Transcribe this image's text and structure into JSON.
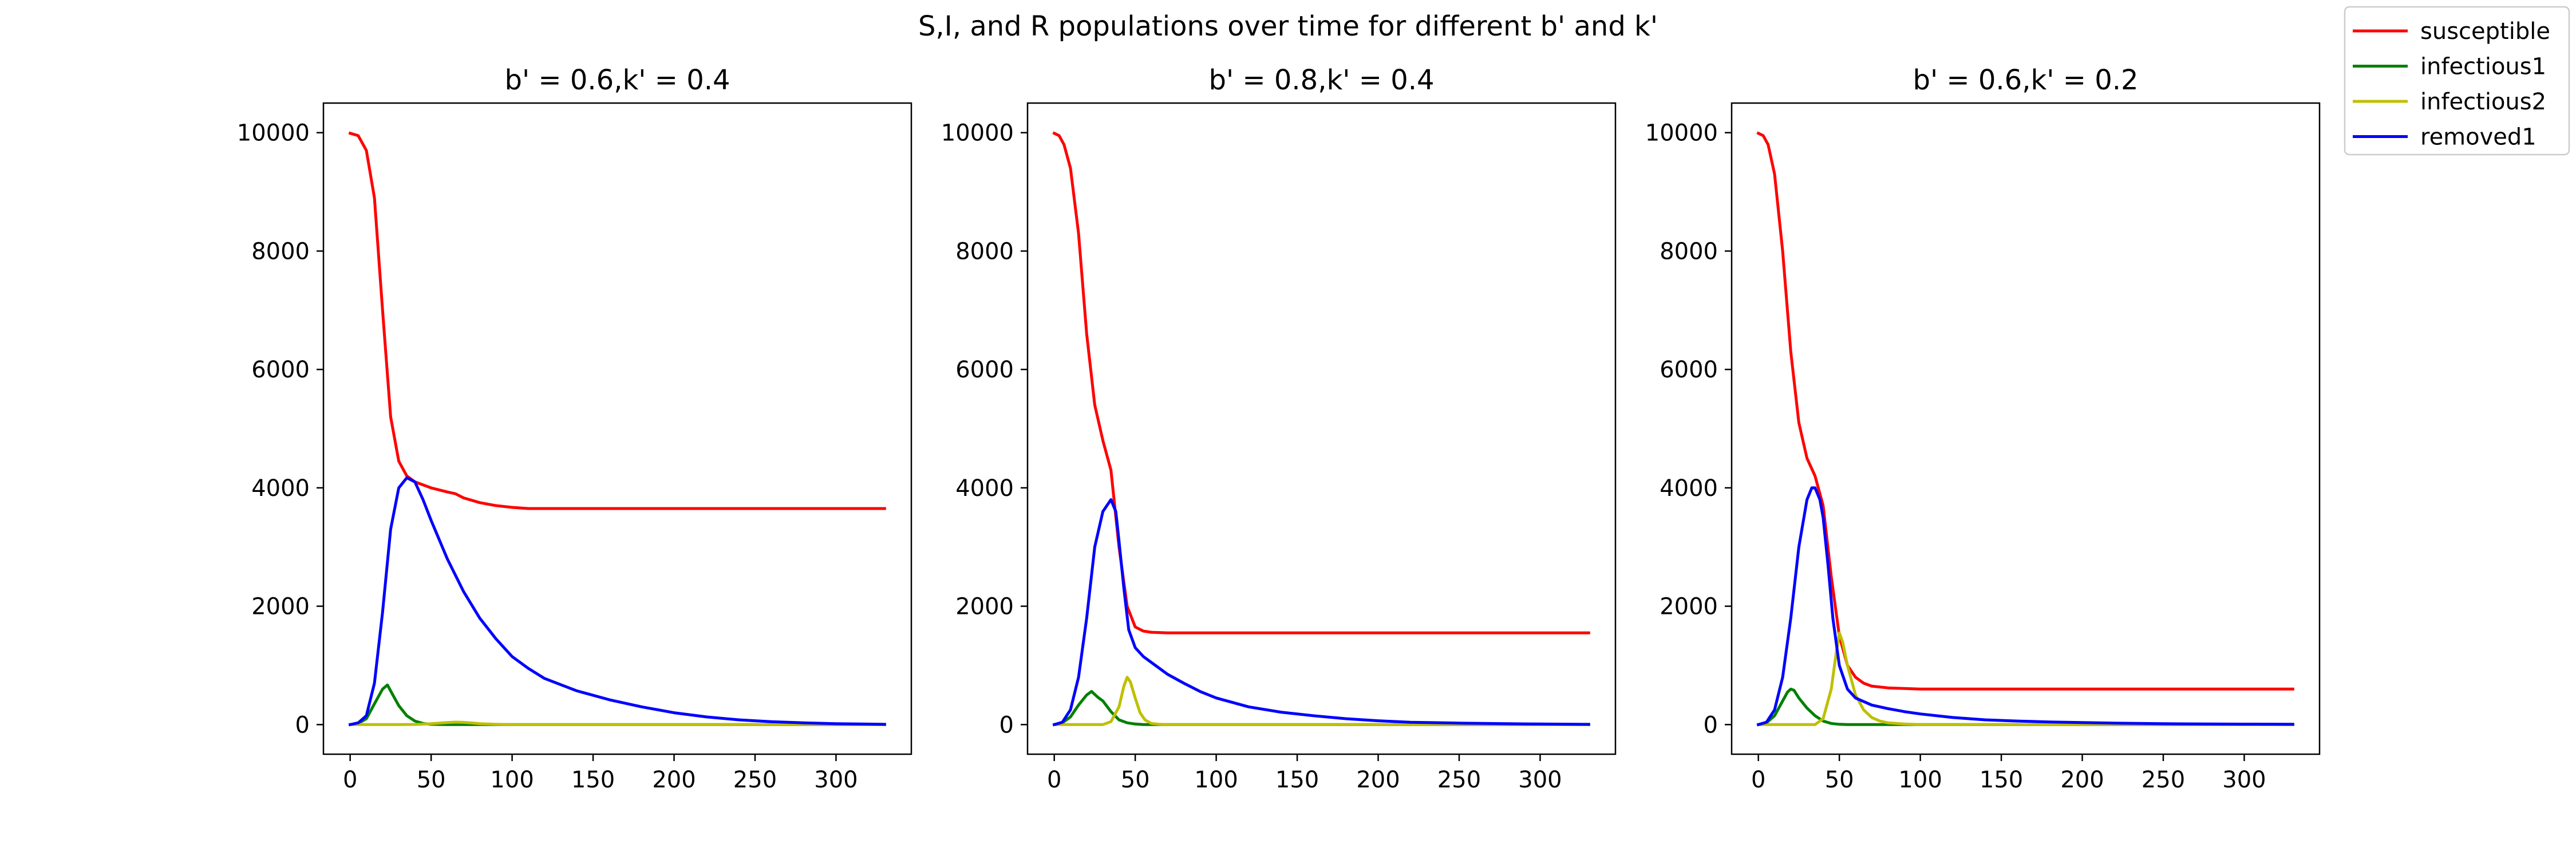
{
  "figure": {
    "suptitle": "S,I, and R populations over time for different b' and k'"
  },
  "legend": {
    "placement": "top-right",
    "entries": [
      {
        "label": "susceptible",
        "color": "#ff0000"
      },
      {
        "label": "infectious1",
        "color": "#008000"
      },
      {
        "label": "infectious2",
        "color": "#bfbf00"
      },
      {
        "label": "removed1",
        "color": "#0000ff"
      }
    ]
  },
  "chart_data": [
    {
      "type": "line",
      "title": "b' = 0.6,k' = 0.4",
      "xlabel": "",
      "ylabel": "",
      "xlim": [
        -16.5,
        346.5
      ],
      "ylim": [
        -500,
        10500
      ],
      "xticks": [
        0,
        50,
        100,
        150,
        200,
        250,
        300
      ],
      "yticks": [
        0,
        2000,
        4000,
        6000,
        8000,
        10000
      ],
      "grid": false,
      "series": [
        {
          "name": "susceptible",
          "color": "#ff0000",
          "x": [
            0,
            5,
            10,
            15,
            20,
            25,
            30,
            35,
            40,
            50,
            60,
            65,
            70,
            80,
            90,
            100,
            110,
            150,
            200,
            250,
            300,
            330
          ],
          "y": [
            9990,
            9950,
            9700,
            8900,
            7000,
            5200,
            4450,
            4200,
            4100,
            4000,
            3930,
            3900,
            3830,
            3750,
            3700,
            3670,
            3650,
            3650,
            3650,
            3650,
            3650,
            3650
          ]
        },
        {
          "name": "infectious1",
          "color": "#008000",
          "x": [
            0,
            5,
            10,
            15,
            20,
            23,
            26,
            30,
            35,
            40,
            45,
            50,
            60,
            80,
            100,
            330
          ],
          "y": [
            0,
            20,
            100,
            350,
            600,
            670,
            520,
            320,
            150,
            60,
            20,
            5,
            0,
            0,
            0,
            0
          ]
        },
        {
          "name": "infectious2",
          "color": "#bfbf00",
          "x": [
            0,
            30,
            40,
            45,
            50,
            55,
            60,
            65,
            70,
            75,
            80,
            90,
            100,
            330
          ],
          "y": [
            0,
            0,
            3,
            8,
            15,
            25,
            35,
            42,
            38,
            28,
            15,
            5,
            0,
            0
          ]
        },
        {
          "name": "removed1",
          "color": "#0000ff",
          "x": [
            0,
            5,
            10,
            15,
            20,
            25,
            30,
            35,
            40,
            45,
            50,
            60,
            70,
            80,
            90,
            100,
            110,
            120,
            140,
            160,
            180,
            200,
            220,
            240,
            260,
            280,
            300,
            330
          ],
          "y": [
            0,
            30,
            150,
            700,
            1900,
            3300,
            4000,
            4170,
            4100,
            3800,
            3450,
            2800,
            2250,
            1800,
            1450,
            1150,
            950,
            780,
            570,
            420,
            300,
            200,
            130,
            80,
            50,
            30,
            15,
            5
          ]
        }
      ]
    },
    {
      "type": "line",
      "title": "b' = 0.8,k' = 0.4",
      "xlabel": "",
      "ylabel": "",
      "xlim": [
        -16.5,
        346.5
      ],
      "ylim": [
        -500,
        10500
      ],
      "xticks": [
        0,
        50,
        100,
        150,
        200,
        250,
        300
      ],
      "yticks": [
        0,
        2000,
        4000,
        6000,
        8000,
        10000
      ],
      "grid": false,
      "series": [
        {
          "name": "susceptible",
          "color": "#ff0000",
          "x": [
            0,
            3,
            6,
            10,
            15,
            20,
            25,
            30,
            35,
            40,
            45,
            50,
            55,
            60,
            70,
            80,
            100,
            150,
            200,
            250,
            300,
            330
          ],
          "y": [
            9990,
            9950,
            9800,
            9400,
            8300,
            6600,
            5400,
            4800,
            4300,
            3000,
            2000,
            1650,
            1580,
            1560,
            1550,
            1550,
            1550,
            1550,
            1550,
            1550,
            1550,
            1550
          ]
        },
        {
          "name": "infectious1",
          "color": "#008000",
          "x": [
            0,
            5,
            10,
            15,
            20,
            23,
            27,
            30,
            35,
            40,
            45,
            50,
            55,
            60,
            330
          ],
          "y": [
            0,
            30,
            130,
            330,
            500,
            560,
            460,
            400,
            220,
            80,
            30,
            10,
            0,
            0,
            0
          ]
        },
        {
          "name": "infectious2",
          "color": "#bfbf00",
          "x": [
            0,
            30,
            35,
            40,
            43,
            45,
            47,
            50,
            53,
            56,
            60,
            65,
            70,
            330
          ],
          "y": [
            0,
            0,
            50,
            300,
            650,
            800,
            720,
            450,
            200,
            80,
            20,
            5,
            0,
            0
          ]
        },
        {
          "name": "removed1",
          "color": "#0000ff",
          "x": [
            0,
            5,
            10,
            15,
            20,
            25,
            30,
            35,
            38,
            40,
            43,
            46,
            50,
            55,
            60,
            70,
            80,
            90,
            100,
            120,
            140,
            160,
            180,
            200,
            220,
            250,
            280,
            300,
            330
          ],
          "y": [
            0,
            40,
            250,
            800,
            1800,
            3000,
            3600,
            3800,
            3600,
            3100,
            2300,
            1600,
            1300,
            1150,
            1050,
            850,
            700,
            560,
            450,
            300,
            210,
            150,
            100,
            65,
            40,
            25,
            15,
            10,
            5
          ]
        }
      ]
    },
    {
      "type": "line",
      "title": "b' = 0.6,k' = 0.2",
      "xlabel": "",
      "ylabel": "",
      "xlim": [
        -16.5,
        346.5
      ],
      "ylim": [
        -500,
        10500
      ],
      "xticks": [
        0,
        50,
        100,
        150,
        200,
        250,
        300
      ],
      "yticks": [
        0,
        2000,
        4000,
        6000,
        8000,
        10000
      ],
      "grid": false,
      "series": [
        {
          "name": "susceptible",
          "color": "#ff0000",
          "x": [
            0,
            3,
            6,
            10,
            15,
            20,
            25,
            30,
            35,
            40,
            45,
            50,
            55,
            60,
            65,
            70,
            80,
            90,
            100,
            150,
            200,
            250,
            300,
            330
          ],
          "y": [
            9990,
            9950,
            9800,
            9300,
            8000,
            6300,
            5100,
            4500,
            4200,
            3700,
            2500,
            1500,
            1000,
            800,
            700,
            650,
            620,
            610,
            600,
            600,
            600,
            600,
            600,
            600
          ]
        },
        {
          "name": "infectious1",
          "color": "#008000",
          "x": [
            0,
            5,
            10,
            15,
            18,
            20,
            22,
            25,
            30,
            35,
            40,
            45,
            50,
            55,
            330
          ],
          "y": [
            0,
            30,
            150,
            400,
            550,
            600,
            580,
            450,
            280,
            150,
            60,
            20,
            5,
            0,
            0
          ]
        },
        {
          "name": "infectious2",
          "color": "#bfbf00",
          "x": [
            0,
            35,
            40,
            45,
            48,
            50,
            52,
            55,
            60,
            65,
            70,
            75,
            80,
            90,
            100,
            330
          ],
          "y": [
            0,
            0,
            100,
            600,
            1200,
            1550,
            1400,
            1000,
            500,
            250,
            120,
            60,
            30,
            10,
            0,
            0
          ]
        },
        {
          "name": "removed1",
          "color": "#0000ff",
          "x": [
            0,
            5,
            10,
            15,
            20,
            25,
            30,
            33,
            35,
            38,
            40,
            43,
            46,
            50,
            55,
            60,
            70,
            80,
            90,
            100,
            120,
            140,
            160,
            180,
            200,
            220,
            250,
            280,
            300,
            330
          ],
          "y": [
            0,
            40,
            250,
            800,
            1800,
            3000,
            3800,
            4000,
            4000,
            3800,
            3500,
            2700,
            1800,
            1000,
            600,
            450,
            330,
            270,
            220,
            180,
            120,
            80,
            60,
            45,
            35,
            25,
            15,
            10,
            8,
            5
          ]
        }
      ]
    }
  ]
}
